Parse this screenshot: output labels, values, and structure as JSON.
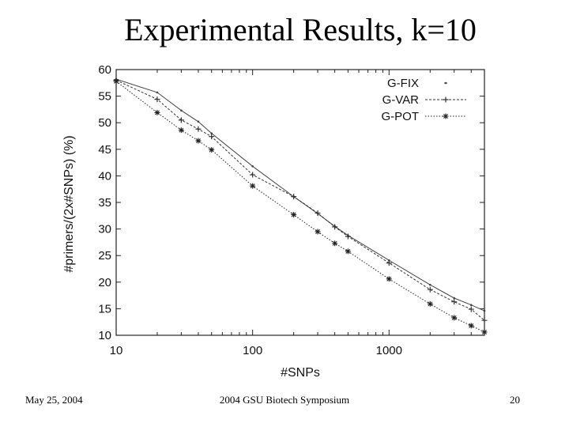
{
  "slide": {
    "title": "Experimental Results, k=10",
    "footer_date": "May 25, 2004",
    "footer_event": "2004 GSU Biotech Symposium",
    "footer_page": "20"
  },
  "chart_data": {
    "type": "line",
    "xlabel": "#SNPs",
    "ylabel": "#primers/(2x#SNPs) (%)",
    "x_scale": "log",
    "xlim": [
      10,
      5000
    ],
    "ylim": [
      10,
      60
    ],
    "x_ticks": [
      10,
      100,
      1000
    ],
    "x_tick_labels": [
      "10",
      "100",
      "1000"
    ],
    "y_ticks": [
      10,
      15,
      20,
      25,
      30,
      35,
      40,
      45,
      50,
      55,
      60
    ],
    "y_tick_labels": [
      "10",
      "15",
      "20",
      "25",
      "30",
      "35",
      "40",
      "45",
      "50",
      "55",
      "60"
    ],
    "legend_position": "top-right",
    "grid": false,
    "x": [
      10,
      20,
      30,
      40,
      50,
      100,
      200,
      300,
      400,
      500,
      1000,
      2000,
      3000,
      4000,
      5000
    ],
    "series": [
      {
        "name": "G-FIX",
        "values": [
          58.2,
          55.7,
          52.3,
          50.2,
          48.0,
          41.8,
          36.1,
          32.9,
          30.5,
          28.8,
          24.1,
          19.5,
          17.0,
          15.7,
          14.6
        ],
        "color": "#444444",
        "dash": "none",
        "marker": "dot"
      },
      {
        "name": "G-VAR",
        "values": [
          58.0,
          54.4,
          50.5,
          48.8,
          47.4,
          40.2,
          36.1,
          33.0,
          30.4,
          28.6,
          23.6,
          18.6,
          16.3,
          14.9,
          12.8
        ],
        "color": "#333333",
        "dash": "3,2",
        "marker": "plus"
      },
      {
        "name": "G-POT",
        "values": [
          57.8,
          51.9,
          48.6,
          46.6,
          44.9,
          38.1,
          32.7,
          29.5,
          27.3,
          25.8,
          20.6,
          15.9,
          13.3,
          11.8,
          10.6
        ],
        "color": "#222222",
        "dash": "1.5,2",
        "marker": "star"
      }
    ]
  }
}
